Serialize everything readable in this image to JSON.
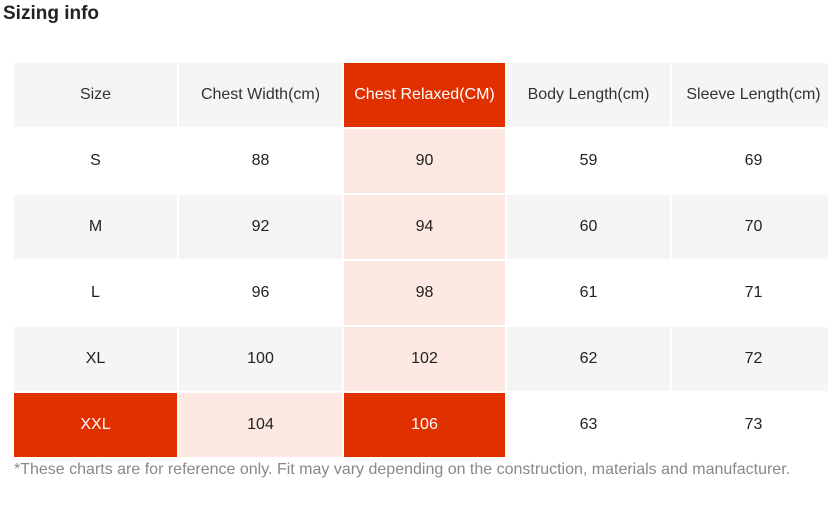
{
  "title": "Sizing info",
  "colors": {
    "highlight": "#e03000",
    "highlight_tint": "#fde8e2",
    "row_shade": "#f5f5f5"
  },
  "table": {
    "headers": [
      "Size",
      "Chest Width(cm)",
      "Chest Relaxed(CM)",
      "Body Length(cm)",
      "Sleeve Length(cm)"
    ],
    "rows": [
      [
        "S",
        "88",
        "90",
        "59",
        "69"
      ],
      [
        "M",
        "92",
        "94",
        "60",
        "70"
      ],
      [
        "L",
        "96",
        "98",
        "61",
        "71"
      ],
      [
        "XL",
        "100",
        "102",
        "62",
        "72"
      ],
      [
        "XXL",
        "104",
        "106",
        "63",
        "73"
      ]
    ],
    "highlighted_column": "Chest Relaxed(CM)",
    "highlighted_row": "XXL"
  },
  "footnote": "*These charts are for reference only. Fit may vary depending on the construction, materials and manufacturer."
}
